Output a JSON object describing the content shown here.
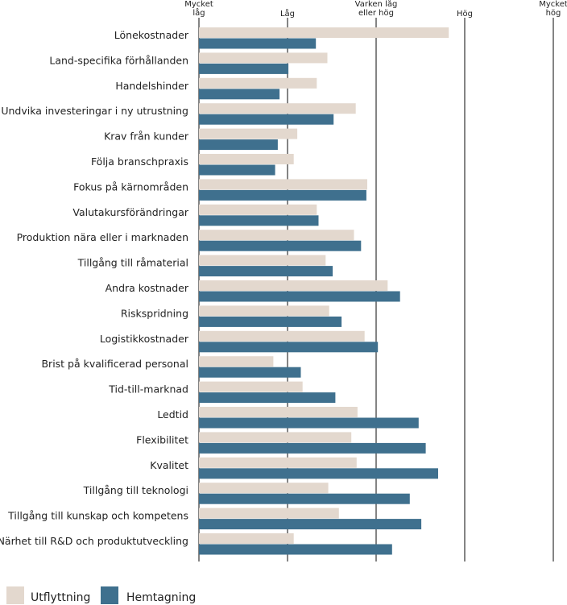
{
  "chart_data": {
    "type": "bar",
    "orientation": "horizontal",
    "xlim": [
      1,
      5
    ],
    "x_ticks": [
      {
        "value": 1,
        "lines": [
          "Mycket",
          "låg"
        ]
      },
      {
        "value": 2,
        "lines": [
          "Låg"
        ]
      },
      {
        "value": 3,
        "lines": [
          "Varken låg",
          "eller hög"
        ]
      },
      {
        "value": 4,
        "lines": [
          "Hög"
        ]
      },
      {
        "value": 5,
        "lines": [
          "Mycket",
          "hög"
        ]
      }
    ],
    "categories": [
      "Lönekostnader",
      "Land-specifika förhållanden",
      "Handelshinder",
      "Undvika investeringar i ny utrustning",
      "Krav från kunder",
      "Följa branschpraxis",
      "Fokus på kärnområden",
      "Valutakursförändringar",
      "Produktion nära eller i marknaden",
      "Tillgång till råmaterial",
      "Andra kostnader",
      "Riskspridning",
      "Logistikkostnader",
      "Brist på kvalificerad personal",
      "Tid-till-marknad",
      "Ledtid",
      "Flexibilitet",
      "Kvalitet",
      "Tillgång till teknologi",
      "Tillgång till kunskap och kompetens",
      "Närhet till R&D och produktutveckling"
    ],
    "series": [
      {
        "name": "Utflyttning",
        "color": "#e3d8ce",
        "values": [
          3.82,
          2.45,
          2.33,
          2.77,
          2.11,
          2.07,
          2.9,
          2.33,
          2.75,
          2.43,
          3.13,
          2.47,
          2.87,
          1.84,
          2.17,
          2.79,
          2.72,
          2.78,
          2.46,
          2.58,
          2.07
        ]
      },
      {
        "name": "Hemtagning",
        "color": "#3f708e",
        "values": [
          2.32,
          2.01,
          1.91,
          2.52,
          1.89,
          1.86,
          2.89,
          2.35,
          2.83,
          2.51,
          3.27,
          2.61,
          3.02,
          2.15,
          2.54,
          3.48,
          3.56,
          3.7,
          3.38,
          3.51,
          3.18
        ]
      }
    ],
    "grid": true,
    "legend_position": "bottom-left"
  }
}
